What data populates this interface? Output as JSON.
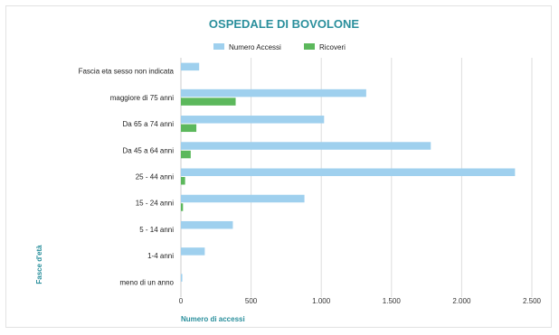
{
  "chart_data": {
    "type": "bar",
    "orientation": "horizontal",
    "title": "OSPEDALE DI BOVOLONE",
    "xlabel": "Numero di accessi",
    "ylabel": "Fasce d'età",
    "categories": [
      "Fascia eta sesso non indicata",
      "maggiore di 75 anni",
      "Da 65 a 74 anni",
      "Da 45 a 64 anni",
      "25 - 44 anni",
      "15 - 24 anni",
      "5 - 14 anni",
      "1-4 anni",
      "meno di un anno"
    ],
    "series": [
      {
        "name": "Numero Accessi",
        "color": "#9fd0ee",
        "values": [
          130,
          1320,
          1020,
          1780,
          2380,
          880,
          370,
          170,
          10
        ]
      },
      {
        "name": "Ricoveri",
        "color": "#5cb85c",
        "values": [
          0,
          390,
          110,
          70,
          30,
          15,
          0,
          0,
          0
        ]
      }
    ],
    "xlim": [
      0,
      2500
    ],
    "xticks": [
      0,
      500,
      1000,
      1500,
      2000,
      2500
    ],
    "xtick_labels": [
      "0",
      "500",
      "1.000",
      "1.500",
      "2.000",
      "2.500"
    ],
    "grid": "vertical",
    "legend_position": "top",
    "title_color": "#2a8f9c",
    "axis_label_color": "#2a8f9c"
  }
}
